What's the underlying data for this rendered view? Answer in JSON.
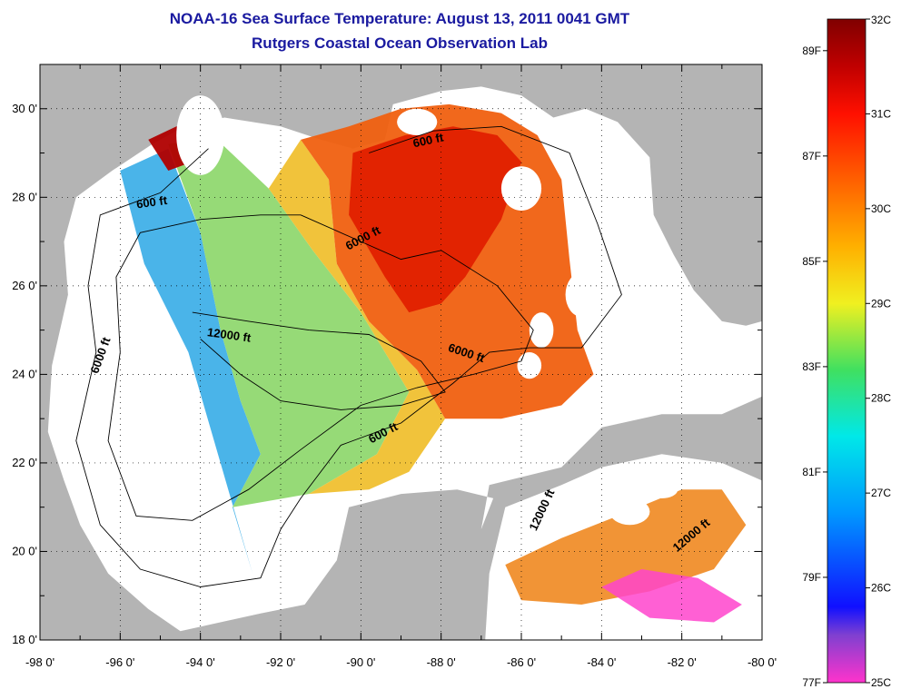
{
  "title": {
    "line1": "NOAA-16 Sea Surface Temperature:  August 13, 2011 0041 GMT",
    "line2": "Rutgers Coastal Ocean Observation Lab"
  },
  "map": {
    "region": "Gulf of Mexico",
    "lon_range": [
      -98,
      -80
    ],
    "lat_range": [
      18,
      31
    ],
    "lon_ticks": [
      {
        "value": -98,
        "label": "-98 0'"
      },
      {
        "value": -96,
        "label": "-96 0'"
      },
      {
        "value": -94,
        "label": "-94 0'"
      },
      {
        "value": -92,
        "label": "-92 0'"
      },
      {
        "value": -90,
        "label": "-90 0'"
      },
      {
        "value": -88,
        "label": "-88 0'"
      },
      {
        "value": -86,
        "label": "-86 0'"
      },
      {
        "value": -84,
        "label": "-84 0'"
      },
      {
        "value": -82,
        "label": "-82 0'"
      },
      {
        "value": -80,
        "label": "-80 0'"
      }
    ],
    "lat_ticks": [
      {
        "value": 18,
        "label": "18 0'"
      },
      {
        "value": 20,
        "label": "20 0'"
      },
      {
        "value": 22,
        "label": "22 0'"
      },
      {
        "value": 24,
        "label": "24 0'"
      },
      {
        "value": 26,
        "label": "26 0'"
      },
      {
        "value": 28,
        "label": "28 0'"
      },
      {
        "value": 30,
        "label": "30 0'"
      }
    ],
    "grid": "dotted",
    "colors": {
      "land": "#b4b4b4",
      "no_data_ocean": "#ffffff",
      "frame": "#000000",
      "contour": "#000000"
    },
    "contour_labels": [
      {
        "text": "600 ft",
        "lon": -95.2,
        "lat": 27.8,
        "angle": -8
      },
      {
        "text": "600 ft",
        "lon": -88.3,
        "lat": 29.2,
        "angle": -12
      },
      {
        "text": "6000 ft",
        "lon": -89.9,
        "lat": 27.0,
        "angle": -28
      },
      {
        "text": "12000 ft",
        "lon": -93.3,
        "lat": 24.8,
        "angle": 8
      },
      {
        "text": "6000 ft",
        "lon": -87.4,
        "lat": 24.4,
        "angle": 18
      },
      {
        "text": "6000 ft",
        "lon": -96.4,
        "lat": 24.4,
        "angle": -70
      },
      {
        "text": "600 ft",
        "lon": -89.4,
        "lat": 22.6,
        "angle": -28
      },
      {
        "text": "12000 ft",
        "lon": -85.4,
        "lat": 20.9,
        "angle": -65
      },
      {
        "text": "12000 ft",
        "lon": -81.7,
        "lat": 20.3,
        "angle": -40
      }
    ]
  },
  "colorbar": {
    "c_min": 25,
    "c_max": 32,
    "celsius_ticks": [
      {
        "value": 32,
        "label": "32C"
      },
      {
        "value": 31,
        "label": "31C"
      },
      {
        "value": 30,
        "label": "30C"
      },
      {
        "value": 29,
        "label": "29C"
      },
      {
        "value": 28,
        "label": "28C"
      },
      {
        "value": 27,
        "label": "27C"
      },
      {
        "value": 26,
        "label": "26C"
      },
      {
        "value": 25,
        "label": "25C"
      }
    ],
    "fahrenheit_ticks": [
      {
        "value": 89,
        "label": "89F"
      },
      {
        "value": 87,
        "label": "87F"
      },
      {
        "value": 85,
        "label": "85F"
      },
      {
        "value": 83,
        "label": "83F"
      },
      {
        "value": 81,
        "label": "81F"
      },
      {
        "value": 79,
        "label": "79F"
      },
      {
        "value": 77,
        "label": "77F"
      }
    ],
    "stops": [
      {
        "value": 25.0,
        "color": "#ff33cc"
      },
      {
        "value": 25.5,
        "color": "#8040d0"
      },
      {
        "value": 25.8,
        "color": "#1010ff"
      },
      {
        "value": 26.8,
        "color": "#0099ff"
      },
      {
        "value": 27.6,
        "color": "#00e8e8"
      },
      {
        "value": 28.3,
        "color": "#40e060"
      },
      {
        "value": 29.0,
        "color": "#f0f020"
      },
      {
        "value": 29.6,
        "color": "#ffb000"
      },
      {
        "value": 30.3,
        "color": "#ff6000"
      },
      {
        "value": 31.0,
        "color": "#ff1000"
      },
      {
        "value": 31.5,
        "color": "#c00000"
      },
      {
        "value": 32.0,
        "color": "#800000"
      }
    ]
  }
}
